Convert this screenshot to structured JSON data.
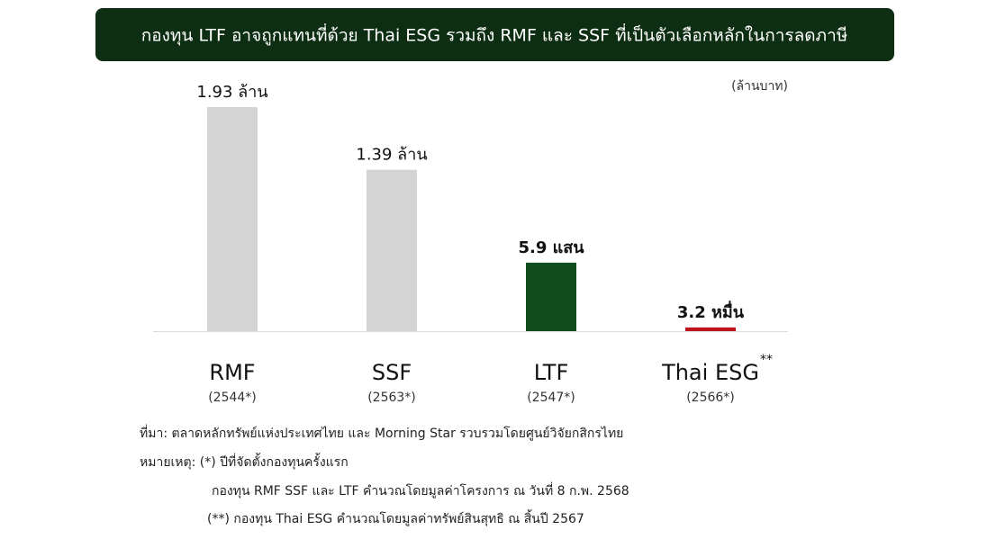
{
  "chart_data": {
    "type": "bar",
    "title": "กองทุน LTF อาจถูกแทนที่ด้วย Thai ESG รวมถึง RMF และ SSF ที่เป็นตัวเลือกหลักในการลดภาษี",
    "unit_label": "(ล้านบาท)",
    "categories": [
      "RMF",
      "SSF",
      "LTF",
      "Thai ESG"
    ],
    "category_markers": [
      null,
      null,
      null,
      "**"
    ],
    "category_notes": [
      "(2544*)",
      "(2563*)",
      "(2547*)",
      "(2566*)"
    ],
    "values": [
      1.93,
      1.39,
      0.59,
      0.032
    ],
    "value_labels": [
      "1.93 ล้าน",
      "1.39 ล้าน",
      "5.9 แสน",
      "3.2 หมื่น"
    ],
    "colors": [
      "#d4d4d4",
      "#d4d4d4",
      "#124d1e",
      "#c0141c"
    ],
    "source": "ที่มา: ตลาดหลักทรัพย์แห่งประเทศไทย และ Morning Star รวบรวมโดยศูนย์วิจัยกสิกรไทย",
    "notes": [
      "หมายเหตุ: (*) ปีที่จัดตั้งกองทุนครั้งแรก",
      "กองทุน RMF SSF และ LTF คำนวณโดยมูลค่าโครงการ ณ วันที่ 8 ก.พ. 2568",
      "(**) กองทุน Thai ESG คำนวณโดยมูลค่าทรัพย์สินสุทธิ ณ สิ้นปี 2567"
    ]
  }
}
